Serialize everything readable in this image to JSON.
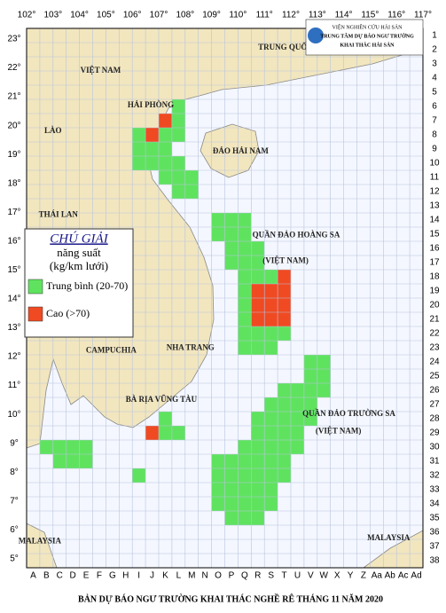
{
  "header": {
    "lines": [
      "VIỆN NGHIÊN CỨU HẢI SẢN",
      "TRUNG TÂM DỰ BÁO NGƯ TRƯỜNG",
      "KHAI THÁC HẢI SẢN"
    ]
  },
  "title": "BẢN DỰ BÁO NGƯ TRƯỜNG KHAI THÁC NGHỀ RÊ THÁNG 11 NĂM 2020",
  "longitudes": [
    "102°",
    "103°",
    "104°",
    "105°",
    "106°",
    "107°",
    "108°",
    "109°",
    "110°",
    "111°",
    "112°",
    "113°",
    "114°",
    "115°",
    "116°",
    "117°"
  ],
  "latitudes": [
    "23°",
    "22°",
    "21°",
    "20°",
    "19°",
    "18°",
    "17°",
    "16°",
    "15°",
    "14°",
    "13°",
    "12°",
    "11°",
    "10°",
    "9°",
    "8°",
    "7°",
    "6°",
    "5°"
  ],
  "rows": [
    "1",
    "2",
    "3",
    "4",
    "5",
    "6",
    "7",
    "8",
    "9",
    "10",
    "11",
    "12",
    "13",
    "14",
    "15",
    "16",
    "17",
    "18",
    "19",
    "20",
    "21",
    "22",
    "23",
    "24",
    "25",
    "26",
    "27",
    "28",
    "29",
    "30",
    "31",
    "32",
    "33",
    "34",
    "35",
    "36",
    "37",
    "38"
  ],
  "columns": [
    "A",
    "B",
    "C",
    "D",
    "E",
    "F",
    "G",
    "H",
    "I",
    "J",
    "K",
    "L",
    "M",
    "N",
    "O",
    "P",
    "Q",
    "R",
    "S",
    "T",
    "U",
    "V",
    "W",
    "X",
    "Y",
    "Z",
    "Aa",
    "Ab",
    "Ac",
    "Ad"
  ],
  "legend": {
    "title": "CHÚ GIẢI",
    "subtitle": [
      "năng suất",
      "(kg/km lưới)"
    ],
    "items": [
      {
        "label": "Trung bình (20-70)",
        "color": "#5fe35f"
      },
      {
        "label": "Cao (>70)",
        "color": "#f04a22"
      }
    ]
  },
  "places": [
    {
      "label": "TRUNG QUỐC",
      "lon": 111.8,
      "lat": 22.7
    },
    {
      "label": "VIỆT NAM",
      "lon": 104.8,
      "lat": 21.9
    },
    {
      "label": "LÀO",
      "lon": 103.0,
      "lat": 19.8
    },
    {
      "label": "THÁI LAN",
      "lon": 103.2,
      "lat": 16.9
    },
    {
      "label": "CAMPUCHIA",
      "lon": 105.2,
      "lat": 12.2
    },
    {
      "label": "HẢI PHÒNG",
      "lon": 106.7,
      "lat": 20.7
    },
    {
      "label": "ĐẢO HẢI NAM",
      "lon": 110.1,
      "lat": 19.1
    },
    {
      "label": "NHA TRANG",
      "lon": 108.2,
      "lat": 12.3
    },
    {
      "label": "BÀ RỊA VŨNG TÀU",
      "lon": 107.1,
      "lat": 10.5
    },
    {
      "label": "QUẦN ĐẢO HOÀNG SA",
      "lon": 112.2,
      "lat": 16.2
    },
    {
      "label": "(VIỆT NAM)",
      "lon": 111.8,
      "lat": 15.3
    },
    {
      "label": "QUẦN ĐẢO TRƯỜNG SA",
      "lon": 114.2,
      "lat": 10.0
    },
    {
      "label": "(VIỆT NAM)",
      "lon": 113.8,
      "lat": 9.4
    },
    {
      "label": "MALAYSIA",
      "lon": 102.5,
      "lat": 5.6
    },
    {
      "label": "MALAYSIA",
      "lon": 115.7,
      "lat": 5.7
    }
  ],
  "cells": [
    {
      "col": "L",
      "row": 6,
      "level": 0
    },
    {
      "col": "K",
      "row": 7,
      "level": 1
    },
    {
      "col": "L",
      "row": 7,
      "level": 0
    },
    {
      "col": "I",
      "row": 8,
      "level": 0
    },
    {
      "col": "J",
      "row": 8,
      "level": 1
    },
    {
      "col": "K",
      "row": 8,
      "level": 0
    },
    {
      "col": "L",
      "row": 8,
      "level": 0
    },
    {
      "col": "I",
      "row": 9,
      "level": 0
    },
    {
      "col": "J",
      "row": 9,
      "level": 0
    },
    {
      "col": "K",
      "row": 9,
      "level": 0
    },
    {
      "col": "I",
      "row": 10,
      "level": 0
    },
    {
      "col": "J",
      "row": 10,
      "level": 0
    },
    {
      "col": "K",
      "row": 10,
      "level": 0
    },
    {
      "col": "L",
      "row": 10,
      "level": 0
    },
    {
      "col": "K",
      "row": 11,
      "level": 0
    },
    {
      "col": "L",
      "row": 11,
      "level": 0
    },
    {
      "col": "M",
      "row": 11,
      "level": 0
    },
    {
      "col": "L",
      "row": 12,
      "level": 0
    },
    {
      "col": "M",
      "row": 12,
      "level": 0
    },
    {
      "col": "O",
      "row": 14,
      "level": 0
    },
    {
      "col": "P",
      "row": 14,
      "level": 0
    },
    {
      "col": "Q",
      "row": 14,
      "level": 0
    },
    {
      "col": "O",
      "row": 15,
      "level": 0
    },
    {
      "col": "P",
      "row": 15,
      "level": 0
    },
    {
      "col": "Q",
      "row": 15,
      "level": 0
    },
    {
      "col": "P",
      "row": 16,
      "level": 0
    },
    {
      "col": "Q",
      "row": 16,
      "level": 0
    },
    {
      "col": "R",
      "row": 16,
      "level": 0
    },
    {
      "col": "P",
      "row": 17,
      "level": 0
    },
    {
      "col": "Q",
      "row": 17,
      "level": 0
    },
    {
      "col": "R",
      "row": 17,
      "level": 0
    },
    {
      "col": "Q",
      "row": 18,
      "level": 0
    },
    {
      "col": "R",
      "row": 18,
      "level": 0
    },
    {
      "col": "S",
      "row": 18,
      "level": 0
    },
    {
      "col": "T",
      "row": 18,
      "level": 1
    },
    {
      "col": "Q",
      "row": 19,
      "level": 0
    },
    {
      "col": "R",
      "row": 19,
      "level": 1
    },
    {
      "col": "S",
      "row": 19,
      "level": 1
    },
    {
      "col": "T",
      "row": 19,
      "level": 1
    },
    {
      "col": "Q",
      "row": 20,
      "level": 0
    },
    {
      "col": "R",
      "row": 20,
      "level": 1
    },
    {
      "col": "S",
      "row": 20,
      "level": 1
    },
    {
      "col": "T",
      "row": 20,
      "level": 1
    },
    {
      "col": "Q",
      "row": 21,
      "level": 0
    },
    {
      "col": "R",
      "row": 21,
      "level": 1
    },
    {
      "col": "S",
      "row": 21,
      "level": 1
    },
    {
      "col": "T",
      "row": 21,
      "level": 1
    },
    {
      "col": "Q",
      "row": 22,
      "level": 0
    },
    {
      "col": "R",
      "row": 22,
      "level": 0
    },
    {
      "col": "S",
      "row": 22,
      "level": 0
    },
    {
      "col": "T",
      "row": 22,
      "level": 0
    },
    {
      "col": "Q",
      "row": 23,
      "level": 0
    },
    {
      "col": "R",
      "row": 23,
      "level": 0
    },
    {
      "col": "S",
      "row": 23,
      "level": 0
    },
    {
      "col": "V",
      "row": 24,
      "level": 0
    },
    {
      "col": "W",
      "row": 24,
      "level": 0
    },
    {
      "col": "V",
      "row": 25,
      "level": 0
    },
    {
      "col": "W",
      "row": 25,
      "level": 0
    },
    {
      "col": "T",
      "row": 26,
      "level": 0
    },
    {
      "col": "U",
      "row": 26,
      "level": 0
    },
    {
      "col": "V",
      "row": 26,
      "level": 0
    },
    {
      "col": "W",
      "row": 26,
      "level": 0
    },
    {
      "col": "S",
      "row": 27,
      "level": 0
    },
    {
      "col": "T",
      "row": 27,
      "level": 0
    },
    {
      "col": "U",
      "row": 27,
      "level": 0
    },
    {
      "col": "V",
      "row": 27,
      "level": 0
    },
    {
      "col": "K",
      "row": 28,
      "level": 0
    },
    {
      "col": "R",
      "row": 28,
      "level": 0
    },
    {
      "col": "S",
      "row": 28,
      "level": 0
    },
    {
      "col": "T",
      "row": 28,
      "level": 0
    },
    {
      "col": "U",
      "row": 28,
      "level": 0
    },
    {
      "col": "V",
      "row": 28,
      "level": 0
    },
    {
      "col": "J",
      "row": 29,
      "level": 1
    },
    {
      "col": "K",
      "row": 29,
      "level": 0
    },
    {
      "col": "L",
      "row": 29,
      "level": 0
    },
    {
      "col": "R",
      "row": 29,
      "level": 0
    },
    {
      "col": "S",
      "row": 29,
      "level": 0
    },
    {
      "col": "T",
      "row": 29,
      "level": 0
    },
    {
      "col": "U",
      "row": 29,
      "level": 0
    },
    {
      "col": "B",
      "row": 30,
      "level": 0
    },
    {
      "col": "C",
      "row": 30,
      "level": 0
    },
    {
      "col": "D",
      "row": 30,
      "level": 0
    },
    {
      "col": "E",
      "row": 30,
      "level": 0
    },
    {
      "col": "Q",
      "row": 30,
      "level": 0
    },
    {
      "col": "R",
      "row": 30,
      "level": 0
    },
    {
      "col": "S",
      "row": 30,
      "level": 0
    },
    {
      "col": "T",
      "row": 30,
      "level": 0
    },
    {
      "col": "U",
      "row": 30,
      "level": 0
    },
    {
      "col": "C",
      "row": 31,
      "level": 0
    },
    {
      "col": "D",
      "row": 31,
      "level": 0
    },
    {
      "col": "E",
      "row": 31,
      "level": 0
    },
    {
      "col": "O",
      "row": 31,
      "level": 0
    },
    {
      "col": "P",
      "row": 31,
      "level": 0
    },
    {
      "col": "Q",
      "row": 31,
      "level": 0
    },
    {
      "col": "R",
      "row": 31,
      "level": 0
    },
    {
      "col": "S",
      "row": 31,
      "level": 0
    },
    {
      "col": "T",
      "row": 31,
      "level": 0
    },
    {
      "col": "I",
      "row": 32,
      "level": 0
    },
    {
      "col": "O",
      "row": 32,
      "level": 0
    },
    {
      "col": "P",
      "row": 32,
      "level": 0
    },
    {
      "col": "Q",
      "row": 32,
      "level": 0
    },
    {
      "col": "R",
      "row": 32,
      "level": 0
    },
    {
      "col": "S",
      "row": 32,
      "level": 0
    },
    {
      "col": "T",
      "row": 32,
      "level": 0
    },
    {
      "col": "O",
      "row": 33,
      "level": 0
    },
    {
      "col": "P",
      "row": 33,
      "level": 0
    },
    {
      "col": "Q",
      "row": 33,
      "level": 0
    },
    {
      "col": "R",
      "row": 33,
      "level": 0
    },
    {
      "col": "S",
      "row": 33,
      "level": 0
    },
    {
      "col": "O",
      "row": 34,
      "level": 0
    },
    {
      "col": "P",
      "row": 34,
      "level": 0
    },
    {
      "col": "Q",
      "row": 34,
      "level": 0
    },
    {
      "col": "R",
      "row": 34,
      "level": 0
    },
    {
      "col": "S",
      "row": 34,
      "level": 0
    },
    {
      "col": "P",
      "row": 35,
      "level": 0
    },
    {
      "col": "Q",
      "row": 35,
      "level": 0
    },
    {
      "col": "R",
      "row": 35,
      "level": 0
    }
  ]
}
